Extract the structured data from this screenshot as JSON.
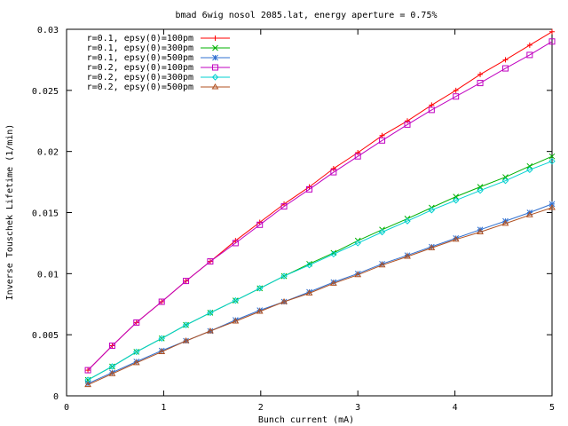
{
  "chart_data": {
    "type": "line",
    "title": "bmad 6wig nosol 2085.lat, energy aperture = 0.75%",
    "xlabel": "Bunch current (mA)",
    "ylabel": "Inverse Touschek Lifetime (1/min)",
    "xlim": [
      0,
      5
    ],
    "ylim": [
      0,
      0.03
    ],
    "xticks": [
      "0",
      "1",
      "2",
      "3",
      "4",
      "5"
    ],
    "yticks": [
      "0",
      "0.005",
      "0.01",
      "0.015",
      "0.02",
      "0.025",
      "0.03"
    ],
    "grid": false,
    "legend_position": "top-left",
    "x": [
      0.22,
      0.47,
      0.72,
      0.98,
      1.23,
      1.48,
      1.74,
      1.99,
      2.24,
      2.5,
      2.75,
      3.0,
      3.25,
      3.51,
      3.76,
      4.01,
      4.26,
      4.52,
      4.77,
      5.0
    ],
    "series": [
      {
        "name": "r=0.1, epsy(0)=100pm",
        "color": "#ff0000",
        "marker": "plus",
        "values": [
          0.0021,
          0.0041,
          0.006,
          0.0077,
          0.0094,
          0.011,
          0.0127,
          0.0142,
          0.0157,
          0.0171,
          0.0186,
          0.0199,
          0.0213,
          0.0225,
          0.0238,
          0.025,
          0.0263,
          0.0275,
          0.0287,
          0.0298
        ]
      },
      {
        "name": "r=0.1, epsy(0)=300pm",
        "color": "#00b000",
        "marker": "x",
        "values": [
          0.0013,
          0.0024,
          0.0036,
          0.0047,
          0.0058,
          0.0068,
          0.0078,
          0.0088,
          0.0098,
          0.0108,
          0.0117,
          0.0127,
          0.0136,
          0.0145,
          0.0154,
          0.0163,
          0.0171,
          0.0179,
          0.0188,
          0.0196
        ]
      },
      {
        "name": "r=0.1, epsy(0)=500pm",
        "color": "#3070d0",
        "marker": "star",
        "values": [
          0.001,
          0.0019,
          0.0028,
          0.0037,
          0.0045,
          0.0053,
          0.0062,
          0.007,
          0.0077,
          0.0085,
          0.0093,
          0.01,
          0.0108,
          0.0115,
          0.0122,
          0.0129,
          0.0136,
          0.0143,
          0.015,
          0.0157
        ]
      },
      {
        "name": "r=0.2, epsy(0)=100pm",
        "color": "#c000c0",
        "marker": "square",
        "values": [
          0.0021,
          0.0041,
          0.006,
          0.0077,
          0.0094,
          0.011,
          0.0125,
          0.014,
          0.0155,
          0.0169,
          0.0183,
          0.0196,
          0.0209,
          0.0222,
          0.0234,
          0.0245,
          0.0256,
          0.0268,
          0.0279,
          0.029
        ]
      },
      {
        "name": "r=0.2, epsy(0)=300pm",
        "color": "#00d0d0",
        "marker": "diamond",
        "values": [
          0.0013,
          0.0024,
          0.0036,
          0.0047,
          0.0058,
          0.0068,
          0.0078,
          0.0088,
          0.0098,
          0.0107,
          0.0116,
          0.0125,
          0.0134,
          0.0143,
          0.0152,
          0.016,
          0.0168,
          0.0176,
          0.0185,
          0.0192
        ]
      },
      {
        "name": "r=0.2, epsy(0)=500pm",
        "color": "#b05020",
        "marker": "triangle",
        "values": [
          0.0009,
          0.0018,
          0.0027,
          0.0036,
          0.0045,
          0.0053,
          0.0061,
          0.0069,
          0.0077,
          0.0084,
          0.0092,
          0.0099,
          0.0107,
          0.0114,
          0.0121,
          0.0128,
          0.0134,
          0.0141,
          0.0148,
          0.0154
        ]
      }
    ]
  }
}
